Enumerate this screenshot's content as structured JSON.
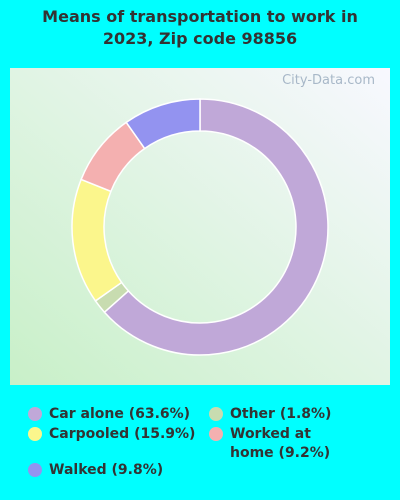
{
  "chart_data": {
    "type": "donut",
    "title": "Means of transportation to work in 2023, Zip code 98856",
    "watermark": "City-Data.com",
    "categories": [
      "Car alone (63.6%)",
      "Other (1.8%)",
      "Carpooled (15.9%)",
      "Worked at home (9.2%)",
      "Walked (9.8%)"
    ],
    "values": [
      63.6,
      1.8,
      15.9,
      9.2,
      9.8
    ],
    "colors": [
      "#c0a8d8",
      "#c8dcb0",
      "#fbf68c",
      "#f4b0b0",
      "#9393f0"
    ]
  }
}
